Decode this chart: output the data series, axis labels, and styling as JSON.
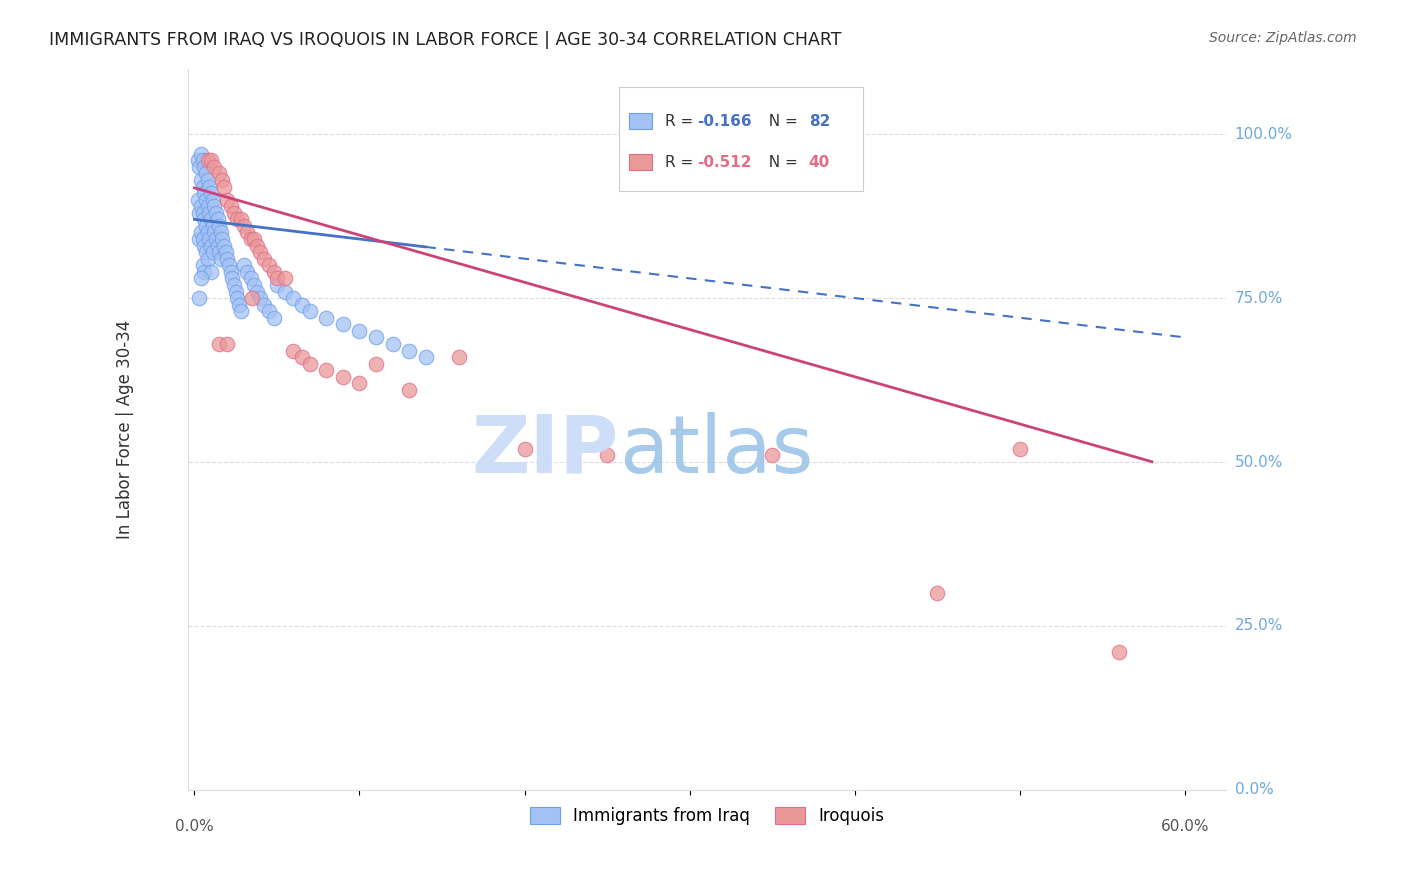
{
  "title": "IMMIGRANTS FROM IRAQ VS IROQUOIS IN LABOR FORCE | AGE 30-34 CORRELATION CHART",
  "source": "Source: ZipAtlas.com",
  "ylabel": "In Labor Force | Age 30-34",
  "iraq_color": "#a4c2f4",
  "iraq_edge_color": "#6d9eeb",
  "iroquois_color": "#ea9999",
  "iroquois_edge_color": "#e06c8a",
  "trendline_iraq_color": "#4472c4",
  "trendline_iroquois_color": "#cc4477",
  "grid_color": "#dddddd",
  "background_color": "#ffffff",
  "right_axis_color": "#6fa8dc",
  "watermark_zip_color": "#c9daf8",
  "watermark_atlas_color": "#9fc5e8",
  "iraq_R": "-0.166",
  "iraq_N": "82",
  "iroquois_R": "-0.512",
  "iroquois_N": "40",
  "legend_iraq_label": "Immigrants from Iraq",
  "legend_iroquois_label": "Iroquois"
}
